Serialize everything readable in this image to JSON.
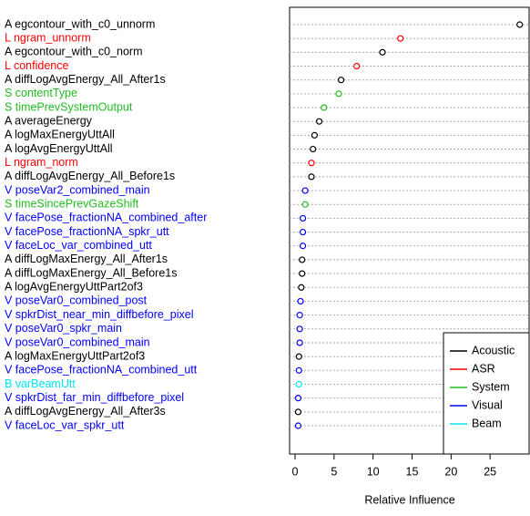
{
  "chart_data": {
    "type": "dotchart",
    "xlabel": "Relative Influence",
    "categories": [
      "A egcontour_with_c0_unnorm",
      "L ngram_unnorm",
      "A egcontour_with_c0_norm",
      "L confidence",
      "A diffLogAvgEnergy_All_After1s",
      "S contentType",
      "S timePrevSystemOutput",
      "A averageEnergy",
      "A logMaxEnergyUttAll",
      "A logAvgEnergyUttAll",
      "L ngram_norm",
      "A diffLogAvgEnergy_All_Before1s",
      "V poseVar2_combined_main",
      "S timeSincePrevGazeShift",
      "V facePose_fractionNA_combined_after",
      "V facePose_fractionNA_spkr_utt",
      "V faceLoc_var_combined_utt",
      "A diffLogMaxEnergy_All_After1s",
      "A diffLogMaxEnergy_All_Before1s",
      "A logAvgEnergyUttPart2of3",
      "V poseVar0_combined_post",
      "V spkrDist_near_min_diffbefore_pixel",
      "V poseVar0_spkr_main",
      "V poseVar0_combined_main",
      "A logMaxEnergyUttPart2of3",
      "V facePose_fractionNA_combined_utt",
      "B varBeamUtt",
      "V spkrDist_far_min_diffbefore_pixel",
      "A diffLogAvgEnergy_All_After3s",
      "V faceLoc_var_spkr_utt"
    ],
    "series": [
      {
        "name": "Acoustic",
        "color": "#000000",
        "values": [
          28.8,
          null,
          11.2,
          null,
          5.9,
          null,
          null,
          3.1,
          2.5,
          2.3,
          null,
          2.1,
          null,
          null,
          null,
          null,
          null,
          0.9,
          0.9,
          0.8,
          null,
          null,
          null,
          null,
          0.5,
          null,
          null,
          null,
          0.4,
          null
        ]
      },
      {
        "name": "ASR",
        "color": "#ff0000",
        "values": [
          null,
          13.5,
          null,
          7.9,
          null,
          null,
          null,
          null,
          null,
          null,
          2.1,
          null,
          null,
          null,
          null,
          null,
          null,
          null,
          null,
          null,
          null,
          null,
          null,
          null,
          null,
          null,
          null,
          null,
          null,
          null
        ]
      },
      {
        "name": "System",
        "color": "#22bb22",
        "values": [
          null,
          null,
          null,
          null,
          null,
          5.6,
          3.7,
          null,
          null,
          null,
          null,
          null,
          null,
          1.3,
          null,
          null,
          null,
          null,
          null,
          null,
          null,
          null,
          null,
          null,
          null,
          null,
          null,
          null,
          null,
          null
        ]
      },
      {
        "name": "Visual",
        "color": "#0000ff",
        "values": [
          null,
          null,
          null,
          null,
          null,
          null,
          null,
          null,
          null,
          null,
          null,
          null,
          1.3,
          null,
          1.0,
          1.0,
          1.0,
          null,
          null,
          null,
          0.7,
          0.6,
          0.6,
          0.6,
          null,
          0.5,
          null,
          0.4,
          null,
          0.4
        ]
      },
      {
        "name": "Beam",
        "color": "#00e5ee",
        "values": [
          null,
          null,
          null,
          null,
          null,
          null,
          null,
          null,
          null,
          null,
          null,
          null,
          null,
          null,
          null,
          null,
          null,
          null,
          null,
          null,
          null,
          null,
          null,
          null,
          null,
          null,
          0.5,
          null,
          null,
          null
        ]
      }
    ],
    "xlim": [
      -0.7,
      30
    ],
    "xticks": [
      0,
      5,
      10,
      15,
      20,
      25
    ],
    "grid": true,
    "legend": "bottom right"
  }
}
